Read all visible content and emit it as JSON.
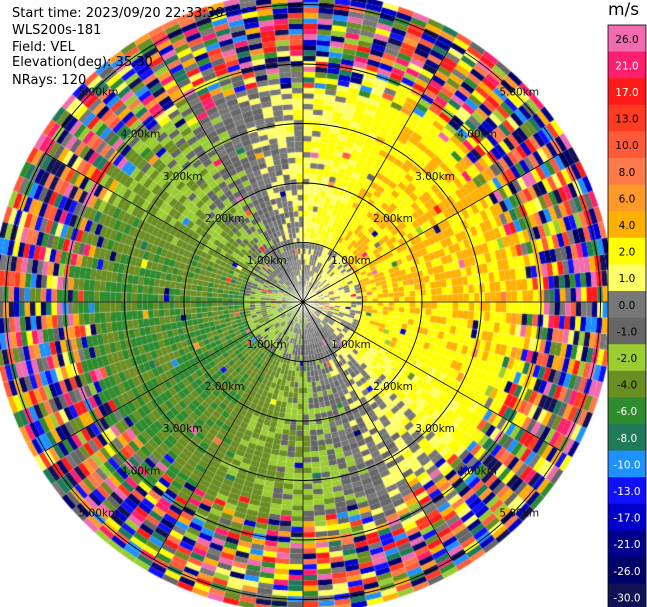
{
  "header": {
    "start_time": "Start time: 2023/09/20 22:33:36",
    "instrument": "WLS200s-181",
    "field": "Field: VEL",
    "elevation": "Elevation(deg): 35.30",
    "nrays": "NRays: 120"
  },
  "chart_data": {
    "type": "heatmap",
    "projection": "polar-ppi",
    "field": "VEL",
    "units": "m/s",
    "n_rays": 120,
    "range_rings_km": [
      1.0,
      2.0,
      3.0,
      4.0,
      5.0
    ],
    "range_ring_labels": [
      "1.00km",
      "2.00km",
      "3.00km",
      "4.00km",
      "5.00km"
    ],
    "max_range_km": 5.3,
    "colorbar": {
      "title": "m/s",
      "ticks": [
        26.0,
        21.0,
        17.0,
        13.0,
        10.0,
        8.0,
        6.0,
        4.0,
        2.0,
        1.0,
        0.0,
        -1.0,
        -2.0,
        -4.0,
        -6.0,
        -8.0,
        -10.0,
        -13.0,
        -17.0,
        -21.0,
        -26.0,
        -30.0
      ],
      "tick_labels": [
        "26.0",
        "21.0",
        "17.0",
        "13.0",
        "10.0",
        "8.0",
        "6.0",
        "4.0",
        "2.0",
        "1.0",
        "0.0",
        "-1.0",
        "-2.0",
        "-4.0",
        "-6.0",
        "-8.0",
        "-10.0",
        "-13.0",
        "-17.0",
        "-21.0",
        "-26.0",
        "-30.0"
      ],
      "colors": [
        "#f06bb0",
        "#ff1f6e",
        "#ff1a1a",
        "#ff3b22",
        "#ff5a3a",
        "#ff7a4a",
        "#ff9a2a",
        "#ffb000",
        "#ffff00",
        "#ffff66",
        "#777777",
        "#666666",
        "#9acd32",
        "#6b8e23",
        "#2e8b2e",
        "#1f7a5a",
        "#1e90ff",
        "#1010ff",
        "#0000cc",
        "#00008b",
        "#000066",
        "#111155"
      ]
    },
    "sector_pattern": {
      "inner_near_zero": "gray",
      "northeast_to_east": "positive 2-6 m/s (yellow/orange)",
      "southwest_to_west": "negative -1 to -6 m/s (green)",
      "outer_beyond_4km": "noise (all colors)"
    }
  }
}
